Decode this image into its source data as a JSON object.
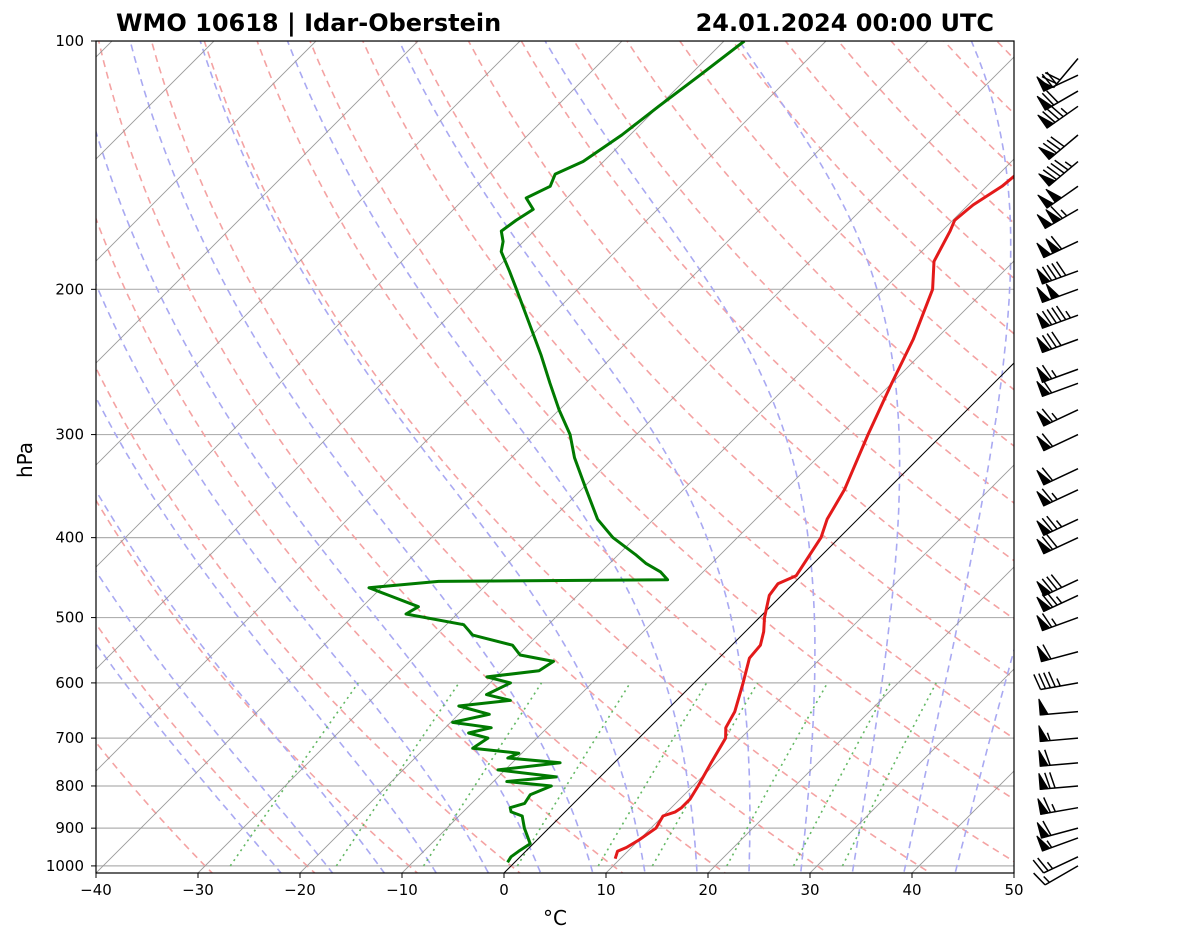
{
  "title_left": "WMO 10618 | Idar-Oberstein",
  "title_right": "24.01.2024 00:00 UTC",
  "chart_data": {
    "type": "line",
    "chart_kind": "skew-T log-P sounding",
    "xlabel": "°C",
    "ylabel": "hPa",
    "xlim": [
      -40,
      50
    ],
    "ylim": [
      1020,
      100
    ],
    "y_scale": "log",
    "x_ticks": [
      "−40",
      "−30",
      "−20",
      "−10",
      "0",
      "10",
      "20",
      "30",
      "40",
      "50"
    ],
    "x_tick_values": [
      -40,
      -30,
      -20,
      -10,
      0,
      10,
      20,
      30,
      40,
      50
    ],
    "y_ticks": [
      "100",
      "200",
      "300",
      "400",
      "500",
      "600",
      "700",
      "800",
      "900",
      "1000"
    ],
    "y_tick_values": [
      100,
      200,
      300,
      400,
      500,
      600,
      700,
      800,
      900,
      1000
    ],
    "grid": true,
    "colors": {
      "temperature": "#e31a1a",
      "dewpoint": "#007a00",
      "dry_adiabats": "#f4a3a3",
      "moist_adiabats": "#a9a9f2",
      "mixing_ratio": "#63b863",
      "isotherms": "#9a9a9a",
      "freezing_isotherm": "#000000"
    },
    "series": [
      {
        "key": "temperature",
        "pressure": [
          980,
          960,
          950,
          930,
          900,
          870,
          860,
          850,
          830,
          800,
          750,
          700,
          680,
          650,
          600,
          560,
          540,
          520,
          500,
          470,
          455,
          445,
          420,
          400,
          380,
          350,
          320,
          300,
          260,
          230,
          200,
          185,
          170,
          165,
          160,
          158,
          150,
          140,
          138,
          130,
          125,
          115,
          110,
          102,
          100
        ],
        "value": [
          9.5,
          9.0,
          9.5,
          10.0,
          10.5,
          10.0,
          10.8,
          11.0,
          11.0,
          10.5,
          9.5,
          8.5,
          7.5,
          6.8,
          4.8,
          3.0,
          2.8,
          1.8,
          0.5,
          -1.2,
          -1.5,
          -0.5,
          -1.2,
          -1.8,
          -3.0,
          -4.2,
          -6.0,
          -7.3,
          -10.0,
          -12.2,
          -15.2,
          -17.8,
          -19.2,
          -19.8,
          -19.6,
          -19.5,
          -18.5,
          -18.0,
          -17.8,
          -17.5,
          -16.5,
          -14.0,
          -13.5,
          -11.8,
          -11.5
        ]
      },
      {
        "key": "dewpoint",
        "pressure": [
          990,
          975,
          960,
          940,
          900,
          870,
          860,
          850,
          840,
          820,
          800,
          790,
          780,
          765,
          750,
          740,
          730,
          720,
          700,
          690,
          680,
          670,
          655,
          640,
          630,
          620,
          600,
          590,
          580,
          565,
          555,
          540,
          525,
          510,
          495,
          485,
          470,
          460,
          452,
          450,
          440,
          430,
          420,
          400,
          380,
          350,
          320,
          300,
          280,
          260,
          240,
          220,
          200,
          190,
          180,
          175,
          170,
          165,
          160,
          155,
          150,
          145,
          140,
          130,
          120,
          110,
          100
        ],
        "value": [
          -0.7,
          -0.9,
          -0.7,
          -0.3,
          -2.4,
          -3.8,
          -5.3,
          -5.8,
          -4.8,
          -5.1,
          -3.9,
          -8.7,
          -4.3,
          -10.7,
          -5.3,
          -10.9,
          -10.3,
          -15.3,
          -14.8,
          -17.2,
          -15.5,
          -19.8,
          -17.0,
          -20.8,
          -16.3,
          -19.2,
          -18.0,
          -20.9,
          -16.4,
          -15.9,
          -19.8,
          -21.5,
          -26.4,
          -28.3,
          -35.0,
          -34.5,
          -38.5,
          -41.2,
          -35.0,
          -12.7,
          -14.2,
          -16.4,
          -18.2,
          -22.2,
          -25.5,
          -29.5,
          -33.8,
          -36.5,
          -40.0,
          -43.5,
          -47.2,
          -51.4,
          -56.0,
          -58.5,
          -61.2,
          -62.0,
          -63.2,
          -62.8,
          -62.2,
          -64.0,
          -62.8,
          -63.5,
          -62.0,
          -60.8,
          -60.0,
          -59.0,
          -58.0
        ]
      }
    ],
    "wind_barbs": {
      "pressure": [
        1000,
        975,
        925,
        900,
        850,
        800,
        750,
        700,
        650,
        600,
        550,
        500,
        470,
        450,
        400,
        380,
        350,
        330,
        300,
        280,
        260,
        250,
        230,
        215,
        200,
        190,
        175,
        160,
        150,
        140,
        130,
        120,
        115,
        110,
        105
      ],
      "speed_kt": [
        15,
        25,
        55,
        60,
        65,
        70,
        60,
        55,
        50,
        45,
        60,
        65,
        75,
        80,
        70,
        75,
        65,
        60,
        60,
        65,
        60,
        65,
        80,
        95,
        100,
        90,
        110,
        115,
        100,
        95,
        80,
        85,
        70,
        70,
        30
      ],
      "direction_deg": [
        240,
        245,
        250,
        255,
        260,
        265,
        265,
        265,
        265,
        260,
        255,
        250,
        245,
        245,
        245,
        245,
        245,
        245,
        245,
        245,
        250,
        250,
        250,
        250,
        250,
        250,
        245,
        240,
        235,
        230,
        230,
        235,
        240,
        245,
        220
      ]
    }
  }
}
